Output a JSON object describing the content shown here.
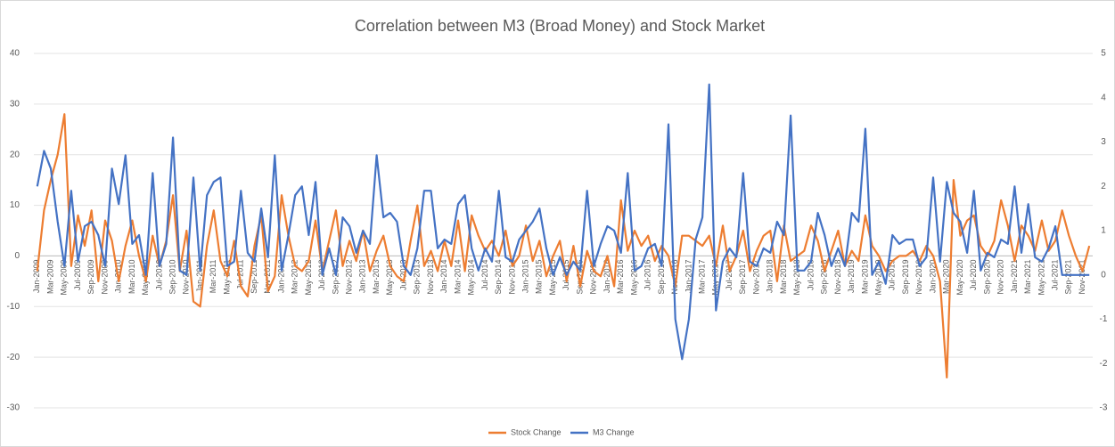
{
  "chart_data": {
    "type": "line",
    "title": "Correlation between M3 (Broad Money) and Stock Market",
    "categories": [
      "Jan-2009",
      null,
      "Mar-2009",
      null,
      "May-2009",
      null,
      "Jul-2009",
      null,
      "Sep-2009",
      null,
      "Nov-2009",
      null,
      "Jan-2010",
      null,
      "Mar-2010",
      null,
      "May-2010",
      null,
      "Jul-2010",
      null,
      "Sep-2010",
      null,
      "Nov-2010",
      null,
      "Jan-2011",
      null,
      "Mar-2011",
      null,
      "May-2011",
      null,
      "Jul-2011",
      null,
      "Sep-2011",
      null,
      "Nov-2011",
      null,
      "Jan-2012",
      null,
      "Mar-2012",
      null,
      "May-2012",
      null,
      "Jul-2012",
      null,
      "Sep-2012",
      null,
      "Nov-2012",
      null,
      "Jan-2013",
      null,
      "Mar-2013",
      null,
      "May-2013",
      null,
      "Jul-2013",
      null,
      "Sep-2013",
      null,
      "Nov-2013",
      null,
      "Jan-2014",
      null,
      "Mar-2014",
      null,
      "May-2014",
      null,
      "Jul-2014",
      null,
      "Sep-2014",
      null,
      "Nov-2014",
      null,
      "Jan-2015",
      null,
      "Mar-2015",
      null,
      "May-2015",
      null,
      "Jul-2015",
      null,
      "Sep-2015",
      null,
      "Nov-2015",
      null,
      "Jan-2016",
      null,
      "Mar-2016",
      null,
      "May-2016",
      null,
      "Jul-2016",
      null,
      "Sep-2016",
      null,
      "Nov-2016",
      null,
      "Jan-2017",
      null,
      "Mar-2017",
      null,
      "May-2017",
      null,
      "Jul-2017",
      null,
      "Sep-2017",
      null,
      "Nov-2017",
      null,
      "Jan-2018",
      null,
      "Mar-2018",
      null,
      "May-2018",
      null,
      "Jul-2018",
      null,
      "Sep-2018",
      null,
      "Nov-2018",
      null,
      "Jan-2019",
      null,
      "Mar-2019",
      null,
      "May-2019",
      null,
      "Jul-2019",
      null,
      "Sep-2019",
      null,
      "Nov-2019",
      null,
      "Jan-2020",
      null,
      "Mar-2020",
      null,
      "May-2020",
      null,
      "Jul-2020",
      null,
      "Sep-2020",
      null,
      "Nov-2020",
      null,
      "Jan-2021",
      null,
      "Mar-2021",
      null,
      "May-2021",
      null,
      "Jul-2021",
      null,
      "Sep-2021",
      null,
      "Nov-2021",
      null
    ],
    "series": [
      {
        "name": "Stock Change",
        "color": "#ed7d31",
        "axis": "y",
        "values": [
          -3,
          9,
          15,
          20,
          28,
          -2,
          8,
          2,
          9,
          -5,
          7,
          3,
          -5,
          2,
          7,
          0,
          -5,
          4,
          -2,
          3,
          12,
          -3,
          5,
          -9,
          -10,
          2,
          9,
          -1,
          -4,
          3,
          -6,
          -8,
          2,
          8,
          -7,
          -4,
          12,
          4,
          -2,
          -3,
          -1,
          7,
          -3,
          3,
          9,
          -2,
          3,
          -1,
          5,
          -3,
          1,
          4,
          -2,
          -4,
          -5,
          3,
          10,
          -2,
          1,
          -3,
          3,
          -2,
          7,
          -3,
          8,
          4,
          1,
          3,
          0,
          5,
          -2,
          0,
          6,
          -1,
          3,
          -4,
          0,
          3,
          -5,
          2,
          -6,
          1,
          -3,
          -4,
          0,
          -6,
          11,
          1,
          5,
          2,
          4,
          -1,
          2,
          0,
          -6,
          4,
          4,
          3,
          2,
          4,
          -2,
          6,
          -3,
          0,
          5,
          -3,
          1,
          4,
          5,
          -5,
          6,
          -1,
          0,
          1,
          6,
          3,
          -3,
          1,
          5,
          -2,
          1,
          -1,
          8,
          2,
          0,
          -3,
          -1,
          0,
          0,
          1,
          -1,
          2,
          0,
          -5,
          -24,
          15,
          4,
          7,
          8,
          2,
          0,
          3,
          11,
          6,
          -1,
          6,
          4,
          1,
          7,
          1,
          3,
          9,
          4,
          0,
          -3,
          2
        ]
      },
      {
        "name": "M3 Change",
        "color": "#4472c4",
        "axis": "y2",
        "values": [
          2.0,
          2.8,
          2.4,
          1.2,
          0.2,
          1.9,
          0.3,
          1.1,
          1.2,
          0.9,
          0.2,
          2.4,
          1.6,
          2.7,
          0.7,
          0.9,
          0.0,
          2.3,
          0.2,
          0.7,
          3.1,
          0.1,
          0.0,
          2.2,
          0.1,
          1.8,
          2.1,
          2.2,
          0.2,
          0.3,
          1.9,
          0.5,
          0.3,
          1.5,
          0.4,
          2.7,
          0.1,
          0.9,
          1.8,
          2.0,
          0.9,
          2.1,
          0.0,
          0.6,
          0.0,
          1.3,
          1.1,
          0.5,
          1.0,
          0.7,
          2.7,
          1.3,
          1.4,
          1.2,
          0.2,
          0.0,
          0.6,
          1.9,
          1.9,
          0.6,
          0.8,
          0.7,
          1.6,
          1.8,
          0.6,
          0.1,
          0.6,
          0.3,
          1.9,
          0.4,
          0.3,
          0.8,
          1.0,
          1.2,
          1.5,
          0.6,
          0.0,
          0.4,
          0.0,
          0.3,
          0.1,
          1.9,
          0.2,
          0.7,
          1.1,
          1.0,
          0.5,
          2.3,
          0.1,
          0.2,
          0.6,
          0.7,
          0.2,
          3.4,
          -1.0,
          -1.9,
          -1.0,
          0.8,
          1.3,
          4.3,
          -0.8,
          0.3,
          0.6,
          0.4,
          2.3,
          0.3,
          0.2,
          0.6,
          0.5,
          1.2,
          0.9,
          3.6,
          0.1,
          0.1,
          0.3,
          1.4,
          0.9,
          0.2,
          0.6,
          0.2,
          1.4,
          1.2,
          3.3,
          0.0,
          0.3,
          -0.2,
          0.9,
          0.7,
          0.8,
          0.8,
          0.2,
          0.4,
          2.2,
          0.3,
          2.1,
          1.4,
          1.2,
          0.5,
          1.9,
          0.1,
          0.5,
          0.4,
          0.8,
          0.7,
          2.0,
          0.5,
          1.6,
          0.4,
          0.3,
          0.6,
          1.1,
          0.0,
          0.0,
          0.0,
          0.0,
          0.0
        ]
      }
    ],
    "ylim": [
      -30,
      40
    ],
    "yticks": [
      -30,
      -20,
      -10,
      0,
      10,
      20,
      30,
      40
    ],
    "y2lim": [
      -3,
      5
    ],
    "y2ticks": [
      -3,
      -2,
      -1,
      0,
      1,
      2,
      3,
      4,
      5
    ],
    "grid": true,
    "legend": "bottom"
  }
}
